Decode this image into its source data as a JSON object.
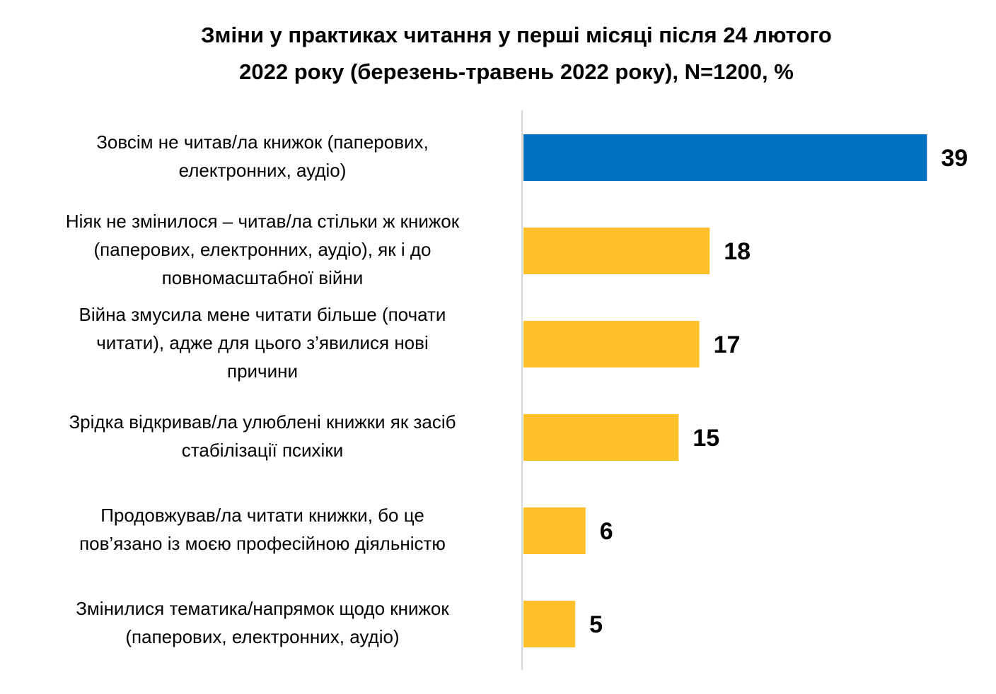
{
  "chart_data": {
    "type": "bar",
    "orientation": "horizontal",
    "title_lines": [
      "Зміни у практиках читання у перші місяці після 24 лютого",
      "2022 року (березень-травень 2022 року), N=1200, %"
    ],
    "categories": [
      [
        "Зовсім не читав/ла книжок (паперових,",
        "електронних, аудіо)"
      ],
      [
        "Ніяк не змінилося – читав/ла стільки ж книжок",
        "(паперових, електронних, аудіо), як і до",
        "повномасштабної війни"
      ],
      [
        "Війна змусила мене читати більше (почати",
        "читати), адже для цього з’явилися нові",
        "причини"
      ],
      [
        "Зрідка відкривав/ла улюблені книжки як засіб",
        "стабілізації психіки"
      ],
      [
        "Продовжував/ла читати книжки, бо це",
        "пов’язано із моєю професійною діяльністю"
      ],
      [
        "Змінилися тематика/напрямок щодо книжок",
        "(паперових, електронних, аудіо)"
      ]
    ],
    "values": [
      39,
      18,
      17,
      15,
      6,
      5
    ],
    "value_labels": [
      "39",
      "18",
      "17",
      "15",
      "6",
      "5"
    ],
    "colors": [
      "#0070C0",
      "#FFC12A",
      "#FFC12A",
      "#FFC12A",
      "#FFC12A",
      "#FFC12A"
    ],
    "xlim": [
      0,
      40
    ],
    "grid": false,
    "legend": "none"
  }
}
